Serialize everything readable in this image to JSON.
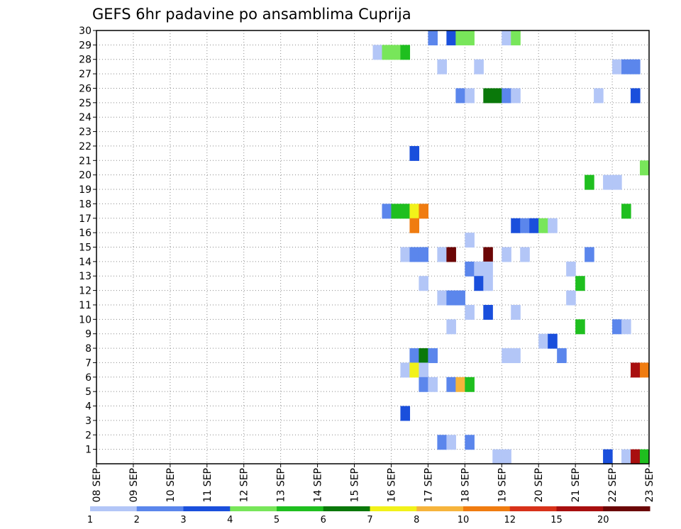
{
  "chart_data": {
    "type": "heatmap",
    "title": "GEFS 6hr padavine po ansamblima Cuprija",
    "xlabel": "",
    "ylabel": "",
    "x_tick_labels": [
      "08 SEP",
      "09 SEP",
      "10 SEP",
      "11 SEP",
      "12 SEP",
      "13 SEP",
      "14 SEP",
      "15 SEP",
      "16 SEP",
      "17 SEP",
      "18 SEP",
      "19 SEP",
      "20 SEP",
      "21 SEP",
      "22 SEP",
      "23 SEP"
    ],
    "x_unit": "6-hour step (4 per day)",
    "xlim": [
      0,
      60
    ],
    "ylim": [
      0,
      30
    ],
    "y_ticks": [
      1,
      2,
      3,
      4,
      5,
      6,
      7,
      8,
      9,
      10,
      11,
      12,
      13,
      14,
      15,
      16,
      17,
      18,
      19,
      20,
      21,
      22,
      23,
      24,
      25,
      26,
      27,
      28,
      29,
      30
    ],
    "grid": true,
    "colorbar": {
      "placement": "bottom",
      "labels": [
        "1",
        "2",
        "3",
        "4",
        "5",
        "6",
        "7",
        "8",
        "10",
        "12",
        "15",
        "20"
      ],
      "colors": [
        "#b3c6f7",
        "#5b86ec",
        "#1a4fdc",
        "#78e65a",
        "#1fbf1f",
        "#0a780a",
        "#f2f21a",
        "#f6b43c",
        "#f07c10",
        "#d8321a",
        "#a80f0f",
        "#6b0606"
      ]
    },
    "cells": [
      [
        36,
        29,
        1
      ],
      [
        38,
        29,
        2
      ],
      [
        39,
        29,
        3
      ],
      [
        40,
        29,
        3
      ],
      [
        44,
        29,
        0
      ],
      [
        45,
        29,
        3
      ],
      [
        30,
        28,
        0
      ],
      [
        31,
        28,
        3
      ],
      [
        32,
        28,
        3
      ],
      [
        33,
        28,
        4
      ],
      [
        37,
        27,
        0
      ],
      [
        41,
        27,
        0
      ],
      [
        56,
        27,
        0
      ],
      [
        57,
        27,
        1
      ],
      [
        58,
        27,
        1
      ],
      [
        39,
        25,
        1
      ],
      [
        40,
        25,
        0
      ],
      [
        42,
        25,
        5
      ],
      [
        43,
        25,
        5
      ],
      [
        44,
        25,
        1
      ],
      [
        45,
        25,
        0
      ],
      [
        54,
        25,
        0
      ],
      [
        58,
        25,
        2
      ],
      [
        34,
        21,
        2
      ],
      [
        59,
        20,
        3
      ],
      [
        53,
        19,
        4
      ],
      [
        55,
        19,
        0
      ],
      [
        56,
        19,
        0
      ],
      [
        31,
        17,
        1
      ],
      [
        32,
        17,
        4
      ],
      [
        33,
        17,
        4
      ],
      [
        34,
        17,
        6
      ],
      [
        35,
        17,
        8
      ],
      [
        57,
        17,
        4
      ],
      [
        34,
        16,
        8
      ],
      [
        45,
        16,
        2
      ],
      [
        46,
        16,
        1
      ],
      [
        47,
        16,
        2
      ],
      [
        48,
        16,
        3
      ],
      [
        49,
        16,
        0
      ],
      [
        40,
        15,
        0
      ],
      [
        33,
        14,
        0
      ],
      [
        34,
        14,
        1
      ],
      [
        35,
        14,
        1
      ],
      [
        37,
        14,
        0
      ],
      [
        38,
        14,
        11
      ],
      [
        42,
        14,
        11
      ],
      [
        44,
        14,
        0
      ],
      [
        46,
        14,
        0
      ],
      [
        53,
        14,
        1
      ],
      [
        40,
        13,
        1
      ],
      [
        41,
        13,
        0
      ],
      [
        42,
        13,
        0
      ],
      [
        51,
        13,
        0
      ],
      [
        35,
        12,
        0
      ],
      [
        41,
        12,
        2
      ],
      [
        42,
        12,
        0
      ],
      [
        52,
        12,
        4
      ],
      [
        37,
        11,
        0
      ],
      [
        38,
        11,
        1
      ],
      [
        39,
        11,
        1
      ],
      [
        51,
        11,
        0
      ],
      [
        40,
        10,
        0
      ],
      [
        42,
        10,
        2
      ],
      [
        45,
        10,
        0
      ],
      [
        38,
        9,
        0
      ],
      [
        52,
        9,
        4
      ],
      [
        56,
        9,
        1
      ],
      [
        57,
        9,
        0
      ],
      [
        48,
        8,
        0
      ],
      [
        49,
        8,
        2
      ],
      [
        34,
        7,
        1
      ],
      [
        35,
        7,
        5
      ],
      [
        36,
        7,
        1
      ],
      [
        44,
        7,
        0
      ],
      [
        45,
        7,
        0
      ],
      [
        50,
        7,
        1
      ],
      [
        33,
        6,
        0
      ],
      [
        34,
        6,
        6
      ],
      [
        35,
        6,
        0
      ],
      [
        58,
        6,
        10
      ],
      [
        59,
        6,
        8
      ],
      [
        35,
        5,
        1
      ],
      [
        36,
        5,
        0
      ],
      [
        38,
        5,
        1
      ],
      [
        39,
        5,
        7
      ],
      [
        40,
        5,
        4
      ],
      [
        33,
        3,
        2
      ],
      [
        37,
        1,
        1
      ],
      [
        38,
        1,
        0
      ],
      [
        40,
        1,
        1
      ],
      [
        43,
        0,
        0
      ],
      [
        44,
        0,
        0
      ],
      [
        55,
        0,
        2
      ],
      [
        57,
        0,
        0
      ],
      [
        58,
        0,
        10
      ],
      [
        59,
        0,
        4
      ]
    ]
  }
}
